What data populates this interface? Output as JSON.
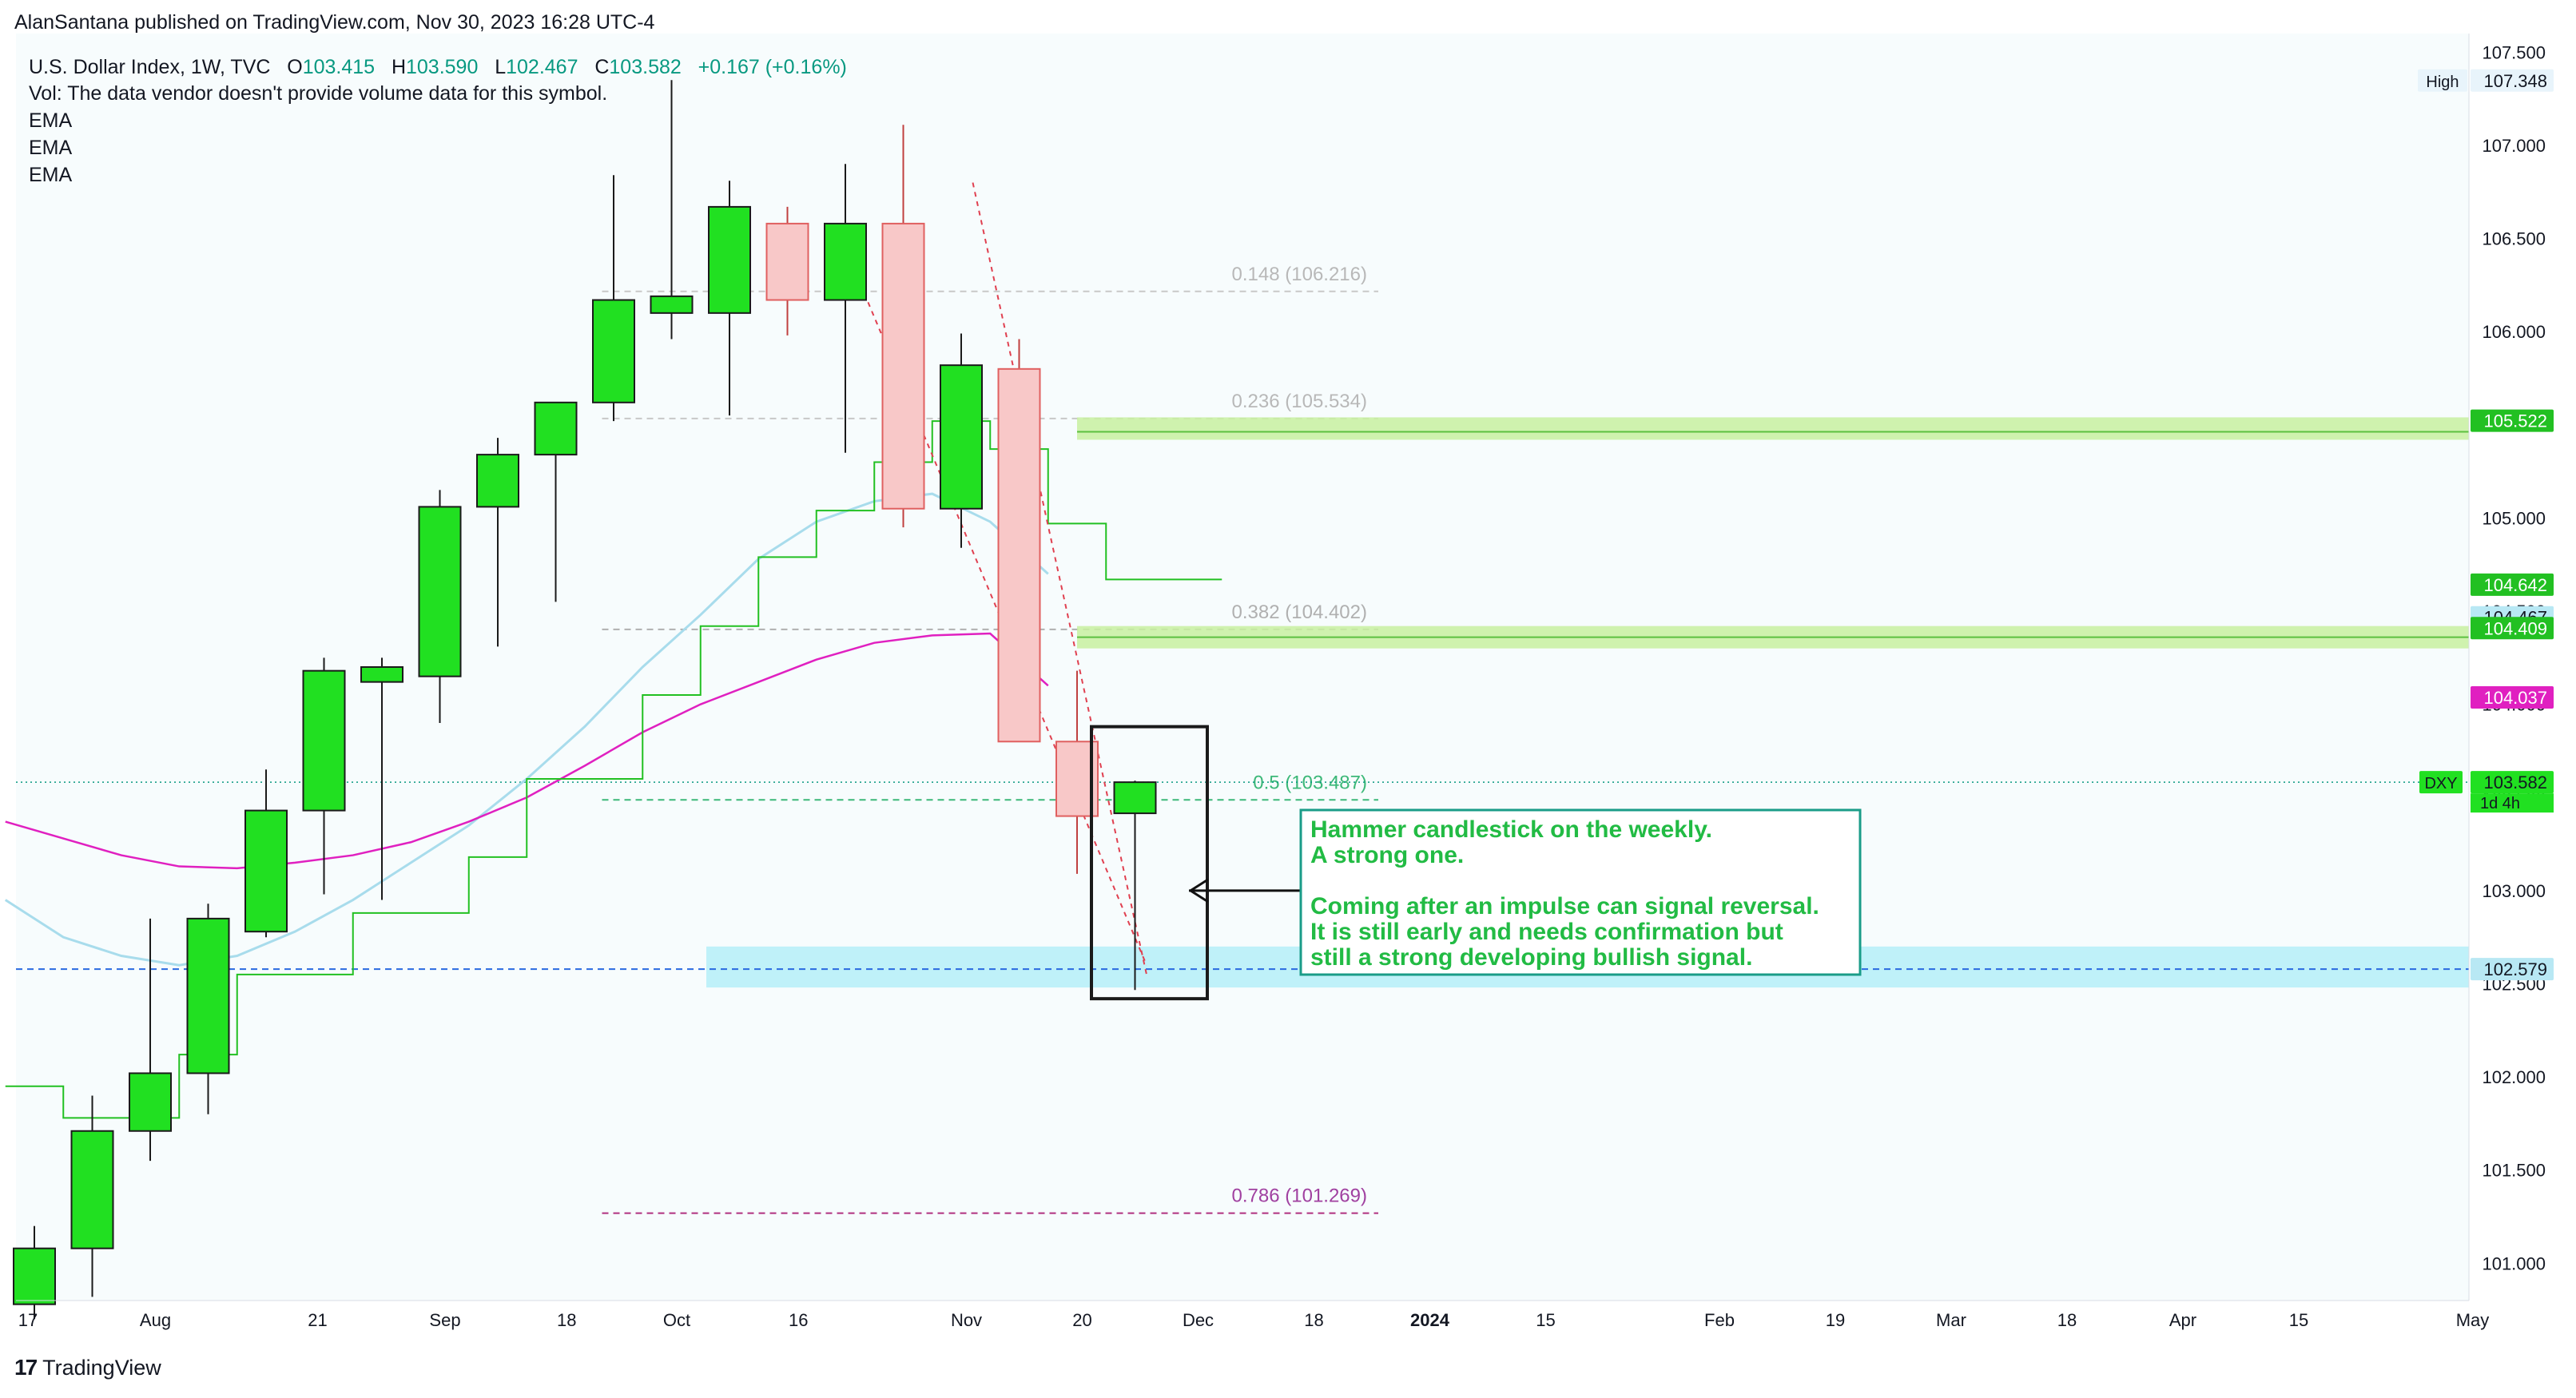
{
  "attribution": "AlanSantana published on TradingView.com, Nov 30, 2023 16:28 UTC-4",
  "header": {
    "symbol": "U.S. Dollar Index, 1W, TVC",
    "o_label": "O",
    "o": "103.415",
    "h_label": "H",
    "h": "103.590",
    "l_label": "L",
    "l": "102.467",
    "c_label": "C",
    "c": "103.582",
    "change": "+0.167 (+0.16%)",
    "vol_note": "Vol: The data vendor doesn't provide volume data for this symbol.",
    "indicators": [
      "EMA",
      "EMA",
      "EMA"
    ]
  },
  "footer": {
    "brand": "TradingView"
  },
  "colors": {
    "up": "#21e021",
    "down": "#f8c8c8",
    "down_border": "#e06060",
    "ema_fast": "#22c022",
    "ema_mid": "#a8dcec",
    "ema_slow": "#e020c0",
    "fib_zone": "#c8f0a0",
    "support_zone": "#b8f0f8",
    "annotation_text": "#22bb44",
    "annotation_border": "#1a9c88",
    "price_line": "#089981"
  },
  "chart_data": {
    "type": "candlestick",
    "symbol": "DXY",
    "timeframe": "1W",
    "ylim": [
      100.8,
      107.6
    ],
    "y_ticks": [
      "101.000",
      "101.500",
      "102.000",
      "102.500",
      "103.000",
      "103.500",
      "104.000",
      "104.500",
      "105.000",
      "105.500",
      "106.000",
      "106.500",
      "107.000",
      "107.500"
    ],
    "x_ticks": [
      {
        "label": "17",
        "week": 0
      },
      {
        "label": "Aug",
        "week": 2.2
      },
      {
        "label": "21",
        "week": 5
      },
      {
        "label": "Sep",
        "week": 7.2
      },
      {
        "label": "18",
        "week": 9.3
      },
      {
        "label": "Oct",
        "week": 11.2
      },
      {
        "label": "16",
        "week": 13.3
      },
      {
        "label": "Nov",
        "week": 16.2
      },
      {
        "label": "20",
        "week": 18.2
      },
      {
        "label": "Dec",
        "week": 20.2
      },
      {
        "label": "18",
        "week": 22.2
      },
      {
        "label": "2024",
        "week": 24.2
      },
      {
        "label": "15",
        "week": 26.2
      },
      {
        "label": "Feb",
        "week": 29.2
      },
      {
        "label": "19",
        "week": 31.2
      },
      {
        "label": "Mar",
        "week": 33.2
      },
      {
        "label": "18",
        "week": 35.2
      },
      {
        "label": "Apr",
        "week": 37.2
      },
      {
        "label": "15",
        "week": 39.2
      },
      {
        "label": "May",
        "week": 42.2
      }
    ],
    "candles": [
      {
        "o": 100.78,
        "h": 101.2,
        "l": 100.7,
        "c": 101.08
      },
      {
        "o": 101.08,
        "h": 101.9,
        "l": 100.82,
        "c": 101.71
      },
      {
        "o": 101.71,
        "h": 102.85,
        "l": 101.55,
        "c": 102.02
      },
      {
        "o": 102.02,
        "h": 102.93,
        "l": 101.8,
        "c": 102.85
      },
      {
        "o": 102.78,
        "h": 103.65,
        "l": 102.75,
        "c": 103.43
      },
      {
        "o": 103.43,
        "h": 104.25,
        "l": 102.98,
        "c": 104.18
      },
      {
        "o": 104.12,
        "h": 104.25,
        "l": 102.95,
        "c": 104.2
      },
      {
        "o": 104.15,
        "h": 105.15,
        "l": 103.9,
        "c": 105.06
      },
      {
        "o": 105.06,
        "h": 105.43,
        "l": 104.31,
        "c": 105.34
      },
      {
        "o": 105.34,
        "h": 105.6,
        "l": 104.55,
        "c": 105.62
      },
      {
        "o": 105.62,
        "h": 106.84,
        "l": 105.52,
        "c": 106.17
      },
      {
        "o": 106.1,
        "h": 107.35,
        "l": 105.96,
        "c": 106.19
      },
      {
        "o": 106.1,
        "h": 106.81,
        "l": 105.55,
        "c": 106.67
      },
      {
        "o": 106.58,
        "h": 106.67,
        "l": 105.98,
        "c": 106.17
      },
      {
        "o": 106.17,
        "h": 106.9,
        "l": 105.35,
        "c": 106.58
      },
      {
        "o": 106.58,
        "h": 107.11,
        "l": 104.95,
        "c": 105.05
      },
      {
        "o": 105.05,
        "h": 105.99,
        "l": 104.84,
        "c": 105.82
      },
      {
        "o": 105.8,
        "h": 105.96,
        "l": 103.8,
        "c": 103.8
      },
      {
        "o": 103.8,
        "h": 104.18,
        "l": 103.09,
        "c": 103.4
      },
      {
        "o": 103.415,
        "h": 103.59,
        "l": 102.467,
        "c": 103.582
      }
    ],
    "ema_fast": [
      101.95,
      101.78,
      101.78,
      102.12,
      102.55,
      102.55,
      102.88,
      102.88,
      103.18,
      103.6,
      103.6,
      104.05,
      104.42,
      104.79,
      105.04,
      105.3,
      105.52,
      105.37,
      104.97,
      104.67,
      104.67
    ],
    "ema_mid": [
      102.95,
      102.75,
      102.65,
      102.6,
      102.65,
      102.78,
      102.95,
      103.15,
      103.35,
      103.6,
      103.88,
      104.2,
      104.48,
      104.78,
      104.98,
      105.09,
      105.13,
      104.98,
      104.7
    ],
    "ema_slow": [
      103.37,
      103.28,
      103.19,
      103.13,
      103.12,
      103.15,
      103.19,
      103.26,
      103.37,
      103.5,
      103.67,
      103.85,
      104.0,
      104.12,
      104.24,
      104.33,
      104.37,
      104.38,
      104.1
    ],
    "fib_levels": [
      {
        "ratio": "0.148",
        "price": 106.216,
        "label": "0.148 (106.216)"
      },
      {
        "ratio": "0.236",
        "price": 105.534,
        "label": "0.236 (105.534)"
      },
      {
        "ratio": "0.382",
        "price": 104.402,
        "label": "0.382 (104.402)"
      },
      {
        "ratio": "0.5",
        "price": 103.487,
        "label": "0.5 (103.487)"
      },
      {
        "ratio": "0.786",
        "price": 101.269,
        "label": "0.786 (101.269)"
      }
    ],
    "fib_zones": [
      105.48,
      104.36
    ],
    "support_zone": {
      "price": 102.579,
      "top": 102.7,
      "bottom": 102.48
    },
    "trendlines": [
      {
        "from": {
          "week": 14.2,
          "price": 106.3
        },
        "to": {
          "week": 19.2,
          "price": 102.6
        }
      },
      {
        "from": {
          "week": 16.2,
          "price": 106.8
        },
        "to": {
          "week": 19.2,
          "price": 102.55
        }
      }
    ],
    "price_labels": [
      {
        "text": "107.348",
        "price": 107.348,
        "tag": "High",
        "kind": "high"
      },
      {
        "text": "105.522",
        "price": 105.522,
        "kind": "green"
      },
      {
        "text": "104.642",
        "price": 104.642,
        "kind": "green"
      },
      {
        "text": "104.467",
        "price": 104.467,
        "kind": "light"
      },
      {
        "text": "104.409",
        "price": 104.409,
        "kind": "green"
      },
      {
        "text": "104.037",
        "price": 104.037,
        "kind": "magenta"
      },
      {
        "text": "103.582",
        "price": 103.582,
        "tag": "DXY",
        "sub": "1d 4h",
        "kind": "last"
      },
      {
        "text": "102.579",
        "price": 102.579,
        "kind": "blue"
      }
    ],
    "annotation": {
      "lines": [
        "Hammer candlestick on the weekly.",
        "A strong one.",
        "",
        "Coming after an impulse can signal reversal.",
        "It is still early and needs confirmation but",
        "still a strong developing bullish signal."
      ]
    },
    "hammer_box": {
      "week_from": 18.0,
      "week_to": 20.0,
      "price_top": 103.88,
      "price_bottom": 102.42
    }
  }
}
